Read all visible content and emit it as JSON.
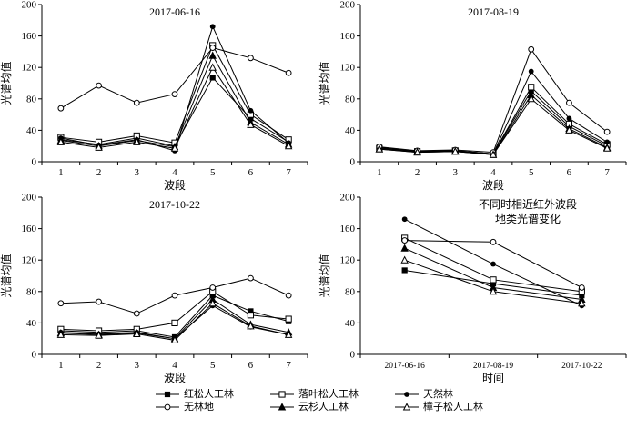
{
  "figure": {
    "background": "#ffffff",
    "line_color": "#000000",
    "text_color": "#000000"
  },
  "legend": {
    "items": [
      {
        "marker": "square-filled",
        "label": "红松人工林"
      },
      {
        "marker": "square-open",
        "label": "落叶松人工林"
      },
      {
        "marker": "circle-filled",
        "label": "天然林"
      },
      {
        "marker": "circle-open",
        "label": "无林地"
      },
      {
        "marker": "triangle-filled",
        "label": "云杉人工林"
      },
      {
        "marker": "triangle-open",
        "label": "樟子松人工林"
      }
    ]
  },
  "chart_data": [
    {
      "id": "2017-06-16",
      "type": "line",
      "title_lines": [
        "2017-06-16"
      ],
      "xlabel": "波段",
      "ylabel": "光谱均值",
      "ylim": [
        0,
        200
      ],
      "ytick_step": 40,
      "grid": false,
      "categories": [
        "1",
        "2",
        "3",
        "4",
        "5",
        "6",
        "7"
      ],
      "series": [
        {
          "name": "红松人工林",
          "marker": "square-filled",
          "values": [
            28,
            22,
            30,
            20,
            107,
            55,
            25
          ]
        },
        {
          "name": "落叶松人工林",
          "marker": "square-open",
          "values": [
            31,
            25,
            33,
            24,
            148,
            60,
            28
          ]
        },
        {
          "name": "天然林",
          "marker": "circle-filled",
          "values": [
            30,
            21,
            28,
            14,
            172,
            65,
            24
          ]
        },
        {
          "name": "无林地",
          "marker": "circle-open",
          "values": [
            68,
            97,
            75,
            86,
            145,
            132,
            113
          ]
        },
        {
          "name": "云杉人工林",
          "marker": "triangle-filled",
          "values": [
            27,
            20,
            27,
            19,
            135,
            50,
            22
          ]
        },
        {
          "name": "樟子松人工林",
          "marker": "triangle-open",
          "values": [
            25,
            18,
            25,
            17,
            120,
            47,
            20
          ]
        }
      ]
    },
    {
      "id": "2017-08-19",
      "type": "line",
      "title_lines": [
        "2017-08-19"
      ],
      "xlabel": "波段",
      "ylabel": "光谱均值",
      "ylim": [
        0,
        200
      ],
      "ytick_step": 40,
      "grid": false,
      "categories": [
        "1",
        "2",
        "3",
        "4",
        "5",
        "6",
        "7"
      ],
      "series": [
        {
          "name": "红松人工林",
          "marker": "square-filled",
          "values": [
            18,
            13,
            14,
            10,
            90,
            45,
            20
          ]
        },
        {
          "name": "落叶松人工林",
          "marker": "square-open",
          "values": [
            17,
            13,
            14,
            10,
            95,
            48,
            22
          ]
        },
        {
          "name": "天然林",
          "marker": "circle-filled",
          "values": [
            18,
            13,
            14,
            10,
            115,
            55,
            25
          ]
        },
        {
          "name": "无林地",
          "marker": "circle-open",
          "values": [
            19,
            14,
            15,
            12,
            143,
            75,
            38
          ]
        },
        {
          "name": "云杉人工林",
          "marker": "triangle-filled",
          "values": [
            16,
            12,
            13,
            9,
            85,
            42,
            18
          ]
        },
        {
          "name": "樟子松人工林",
          "marker": "triangle-open",
          "values": [
            16,
            12,
            13,
            9,
            80,
            40,
            17
          ]
        }
      ]
    },
    {
      "id": "2017-10-22",
      "type": "line",
      "title_lines": [
        "2017-10-22"
      ],
      "xlabel": "波段",
      "ylabel": "光谱均值",
      "ylim": [
        0,
        200
      ],
      "ytick_step": 40,
      "grid": false,
      "categories": [
        "1",
        "2",
        "3",
        "4",
        "5",
        "6",
        "7"
      ],
      "series": [
        {
          "name": "红松人工林",
          "marker": "square-filled",
          "values": [
            30,
            28,
            30,
            22,
            75,
            55,
            42
          ]
        },
        {
          "name": "落叶松人工林",
          "marker": "square-open",
          "values": [
            32,
            30,
            32,
            40,
            80,
            50,
            45
          ]
        },
        {
          "name": "天然林",
          "marker": "circle-filled",
          "values": [
            28,
            26,
            28,
            20,
            62,
            35,
            25
          ]
        },
        {
          "name": "无林地",
          "marker": "circle-open",
          "values": [
            65,
            67,
            52,
            75,
            85,
            97,
            75
          ]
        },
        {
          "name": "云杉人工林",
          "marker": "triangle-filled",
          "values": [
            27,
            25,
            27,
            20,
            70,
            38,
            28
          ]
        },
        {
          "name": "樟子松人工林",
          "marker": "triangle-open",
          "values": [
            25,
            24,
            26,
            18,
            65,
            36,
            25
          ]
        }
      ]
    },
    {
      "id": "nir-comparison",
      "type": "line",
      "title_lines": [
        "不同时相近红外波段",
        "地类光谱变化"
      ],
      "title_x": 0.63,
      "xlabel": "时间",
      "ylabel": "光谱均值",
      "ylim": [
        0,
        200
      ],
      "ytick_step": 40,
      "grid": false,
      "categories": [
        "2017-06-16",
        "2017-08-19",
        "2017-10-22"
      ],
      "series": [
        {
          "name": "红松人工林",
          "marker": "square-filled",
          "values": [
            107,
            90,
            75
          ]
        },
        {
          "name": "落叶松人工林",
          "marker": "square-open",
          "values": [
            148,
            95,
            80
          ]
        },
        {
          "name": "天然林",
          "marker": "circle-filled",
          "values": [
            172,
            115,
            62
          ]
        },
        {
          "name": "无林地",
          "marker": "circle-open",
          "values": [
            145,
            143,
            85
          ]
        },
        {
          "name": "云杉人工林",
          "marker": "triangle-filled",
          "values": [
            135,
            85,
            70
          ]
        },
        {
          "name": "樟子松人工林",
          "marker": "triangle-open",
          "values": [
            120,
            80,
            65
          ]
        }
      ]
    }
  ]
}
